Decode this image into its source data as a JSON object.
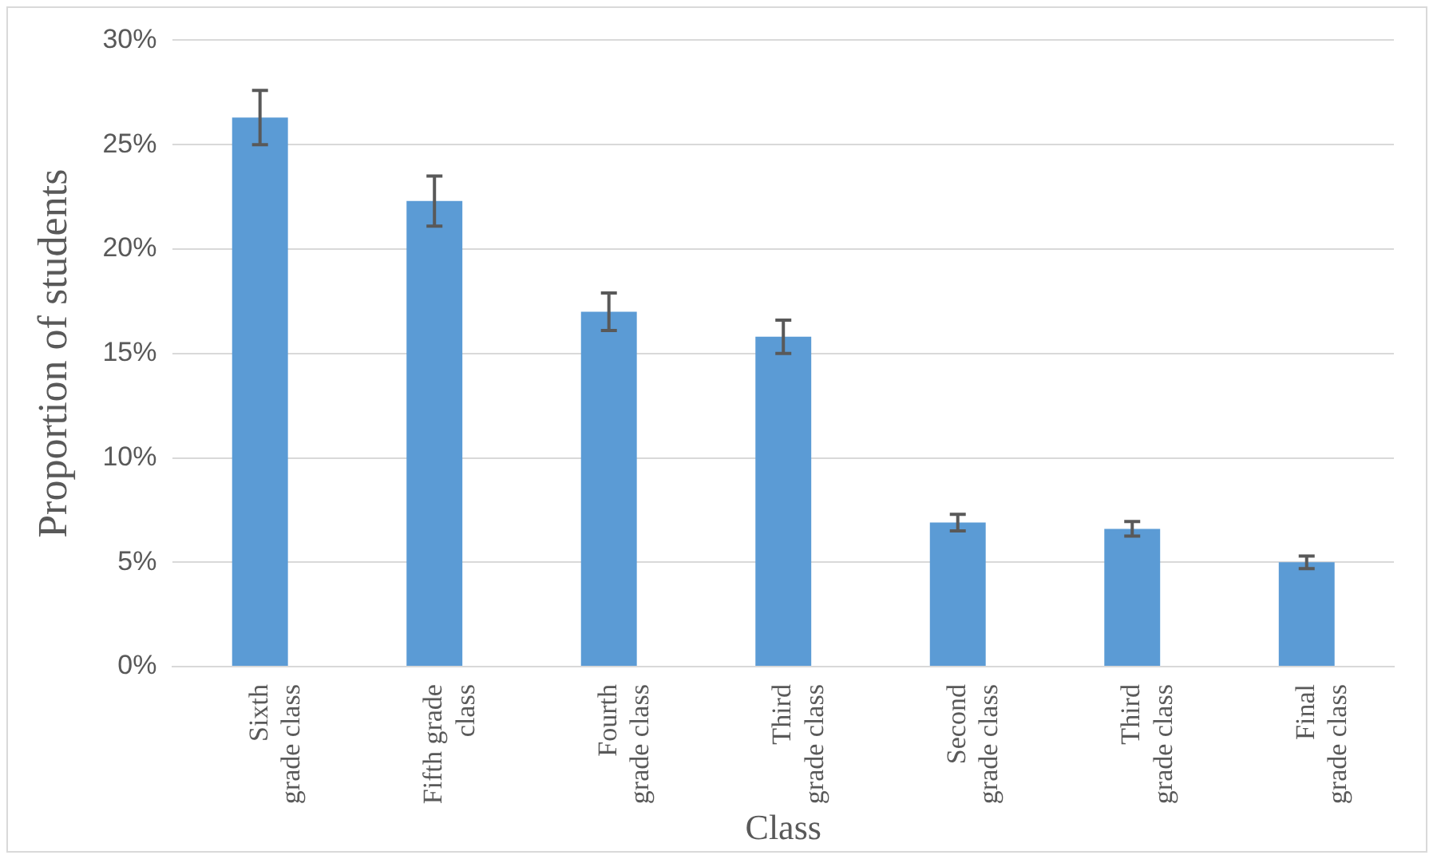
{
  "chart_data": {
    "type": "bar",
    "xlabel": "Class",
    "ylabel": "Proportion of students",
    "categories": [
      "Sixth\ngrade class",
      "Fifth grade\nclass",
      "Fourth\ngrade class",
      "Third\ngrade class",
      "Second\ngrade class",
      "Third\ngrade class",
      "Final\ngrade class"
    ],
    "values": [
      26.3,
      22.3,
      17.0,
      15.8,
      6.9,
      6.6,
      5.0
    ],
    "errors": [
      1.3,
      1.2,
      0.9,
      0.8,
      0.4,
      0.35,
      0.3
    ],
    "color": "#5b9bd5",
    "ylim": [
      0,
      30
    ],
    "yticks": [
      {
        "value": 0,
        "label": "0%"
      },
      {
        "value": 5,
        "label": "5%"
      },
      {
        "value": 10,
        "label": "10%"
      },
      {
        "value": 15,
        "label": "15%"
      },
      {
        "value": 20,
        "label": "20%"
      },
      {
        "value": 25,
        "label": "25%"
      },
      {
        "value": 30,
        "label": "30%"
      }
    ],
    "grid": "y"
  }
}
